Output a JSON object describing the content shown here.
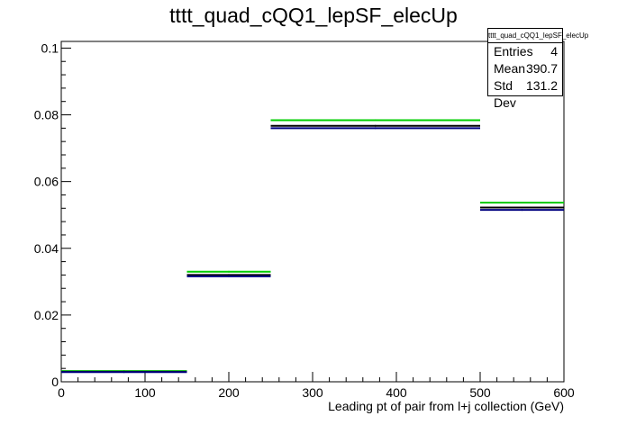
{
  "chart_data": {
    "type": "histogram",
    "title": "tttt_quad_cQQ1_lepSF_elecUp",
    "xlabel": "Leading pt of pair from l+j collection (GeV)",
    "ylabel": "",
    "xlim": [
      0,
      600
    ],
    "ylim": [
      0,
      0.102
    ],
    "x_ticks": [
      0,
      100,
      200,
      300,
      400,
      500,
      600
    ],
    "y_ticks": [
      0,
      0.02,
      0.04,
      0.06,
      0.08,
      0.1
    ],
    "x_tick_labels": [
      "0",
      "100",
      "200",
      "300",
      "400",
      "500",
      "600"
    ],
    "y_tick_labels": [
      "0",
      "0.02",
      "0.04",
      "0.06",
      "0.08",
      "0.1"
    ],
    "bin_edges": [
      0,
      150,
      250,
      500,
      600
    ],
    "series": [
      {
        "color": "#00cc00",
        "values": [
          0.0032,
          0.033,
          0.0784,
          0.0537
        ]
      },
      {
        "color": "#000000",
        "values": [
          0.003,
          0.032,
          0.0767,
          0.0522
        ]
      },
      {
        "color": "#000080",
        "values": [
          0.0029,
          0.0316,
          0.076,
          0.0515
        ]
      }
    ],
    "stats_box": {
      "title": "tttt_quad_cQQ1_lepSF_elecUp",
      "rows": [
        {
          "label": "Entries",
          "value": "4"
        },
        {
          "label": "Mean",
          "value": "390.7"
        },
        {
          "label": "Std Dev",
          "value": "131.2"
        }
      ],
      "position": "top-right"
    },
    "grid": false
  }
}
